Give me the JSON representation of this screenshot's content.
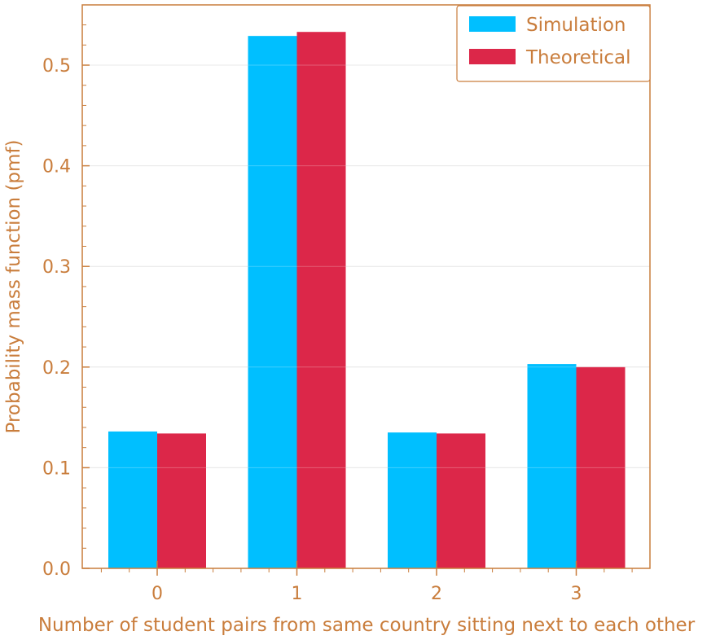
{
  "chart_data": {
    "type": "bar",
    "categories": [
      "0",
      "1",
      "2",
      "3"
    ],
    "series": [
      {
        "name": "Simulation",
        "color": "#00bfff",
        "values": [
          0.136,
          0.529,
          0.135,
          0.203
        ]
      },
      {
        "name": "Theoretical",
        "color": "#dc2749",
        "values": [
          0.134,
          0.533,
          0.134,
          0.2
        ]
      }
    ],
    "xlabel": "Number of student pairs from same country sitting next to each other",
    "ylabel": "Probability mass function (pmf)",
    "ylim": [
      0,
      0.5
    ],
    "yticks": [
      "0.0",
      "0.1",
      "0.2",
      "0.3",
      "0.4",
      "0.5"
    ],
    "grid": true,
    "legend_position": "top-right",
    "colors": {
      "axis": "#c97d3c",
      "grid": "#e0e0e0"
    }
  }
}
